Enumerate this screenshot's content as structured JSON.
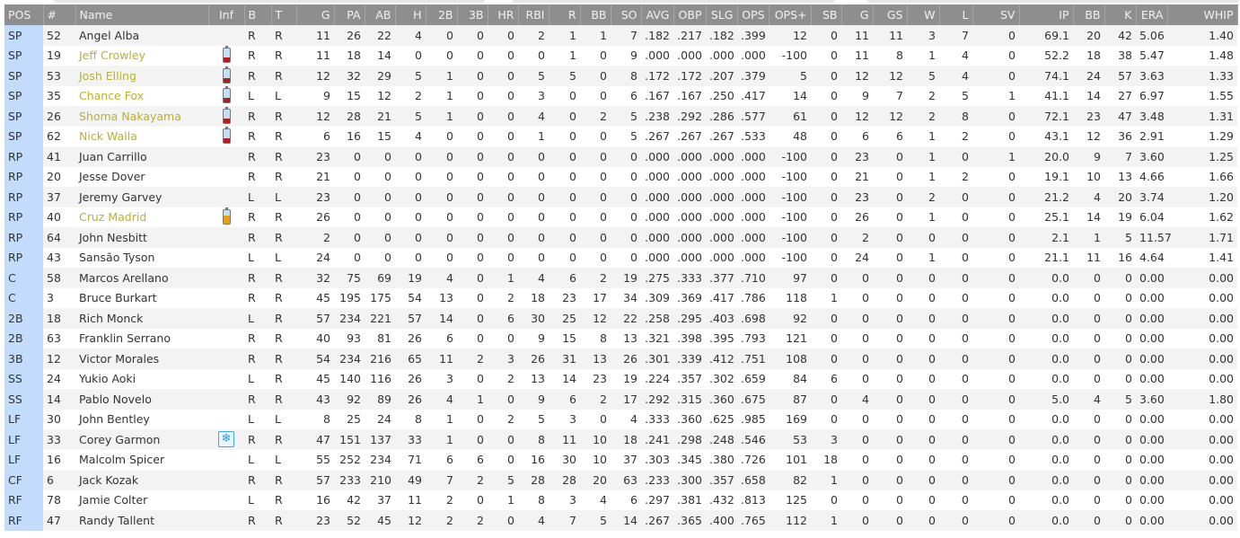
{
  "colors": {
    "header_bg": "#8e8e8e",
    "pos_bg": "#c3dcfb",
    "injured_name": "#b9b22b",
    "battery_low": "#c01818",
    "battery_mid": "#f2a000",
    "battery_top": "#bfe0f7",
    "snowflake": "#2b9be0"
  },
  "columns": [
    "POS",
    "#",
    "Name",
    "Inf",
    "B",
    "T",
    "G",
    "PA",
    "AB",
    "H",
    "2B",
    "3B",
    "HR",
    "RBI",
    "R",
    "BB",
    "SO",
    "AVG",
    "OBP",
    "SLG",
    "OPS",
    "OPS+",
    "SB",
    "G",
    "GS",
    "W",
    "L",
    "SV",
    "IP",
    "BB",
    "K",
    "ERA",
    "WHIP"
  ],
  "rows": [
    {
      "pos": "SP",
      "num": "52",
      "name": "Angel Alba",
      "inf": "",
      "hl": false,
      "stats": [
        "R",
        "R",
        "11",
        "26",
        "22",
        "4",
        "0",
        "0",
        "0",
        "2",
        "1",
        "1",
        "7",
        ".182",
        ".217",
        ".182",
        ".399",
        "12",
        "0",
        "11",
        "11",
        "3",
        "7",
        "0",
        "69.1",
        "20",
        "42",
        "5.06",
        "1.40"
      ]
    },
    {
      "pos": "SP",
      "num": "19",
      "name": "Jeff Crowley",
      "inf": "battery-low-icon",
      "hl": true,
      "stats": [
        "R",
        "R",
        "11",
        "18",
        "14",
        "0",
        "0",
        "0",
        "0",
        "0",
        "1",
        "0",
        "9",
        ".000",
        ".000",
        ".000",
        ".000",
        "-100",
        "0",
        "11",
        "8",
        "1",
        "4",
        "0",
        "52.2",
        "18",
        "38",
        "5.47",
        "1.48"
      ]
    },
    {
      "pos": "SP",
      "num": "53",
      "name": "Josh Elling",
      "inf": "battery-low-icon",
      "hl": true,
      "stats": [
        "R",
        "R",
        "12",
        "32",
        "29",
        "5",
        "1",
        "0",
        "0",
        "5",
        "5",
        "0",
        "8",
        ".172",
        ".172",
        ".207",
        ".379",
        "5",
        "0",
        "12",
        "12",
        "5",
        "4",
        "0",
        "74.1",
        "24",
        "57",
        "3.63",
        "1.33"
      ]
    },
    {
      "pos": "SP",
      "num": "35",
      "name": "Chance Fox",
      "inf": "battery-low-icon",
      "hl": true,
      "stats": [
        "L",
        "L",
        "9",
        "15",
        "12",
        "2",
        "1",
        "0",
        "0",
        "3",
        "0",
        "0",
        "6",
        ".167",
        ".167",
        ".250",
        ".417",
        "14",
        "0",
        "9",
        "7",
        "2",
        "5",
        "1",
        "41.1",
        "14",
        "27",
        "6.97",
        "1.55"
      ]
    },
    {
      "pos": "SP",
      "num": "26",
      "name": "Shoma Nakayama",
      "inf": "battery-low-icon",
      "hl": true,
      "stats": [
        "R",
        "R",
        "12",
        "28",
        "21",
        "5",
        "1",
        "0",
        "0",
        "4",
        "0",
        "2",
        "5",
        ".238",
        ".292",
        ".286",
        ".577",
        "61",
        "0",
        "12",
        "12",
        "2",
        "8",
        "0",
        "72.1",
        "23",
        "47",
        "3.48",
        "1.31"
      ]
    },
    {
      "pos": "SP",
      "num": "62",
      "name": "Nick Walla",
      "inf": "battery-low-icon",
      "hl": true,
      "stats": [
        "R",
        "R",
        "6",
        "16",
        "15",
        "4",
        "0",
        "0",
        "0",
        "1",
        "0",
        "0",
        "5",
        ".267",
        ".267",
        ".267",
        ".533",
        "48",
        "0",
        "6",
        "6",
        "1",
        "2",
        "0",
        "43.1",
        "12",
        "36",
        "2.91",
        "1.29"
      ]
    },
    {
      "pos": "RP",
      "num": "41",
      "name": "Juan Carrillo",
      "inf": "",
      "hl": false,
      "stats": [
        "R",
        "R",
        "23",
        "0",
        "0",
        "0",
        "0",
        "0",
        "0",
        "0",
        "0",
        "0",
        "0",
        ".000",
        ".000",
        ".000",
        ".000",
        "-100",
        "0",
        "23",
        "0",
        "1",
        "0",
        "1",
        "20.0",
        "9",
        "7",
        "3.60",
        "1.25"
      ]
    },
    {
      "pos": "RP",
      "num": "20",
      "name": "Jesse Dover",
      "inf": "",
      "hl": false,
      "stats": [
        "R",
        "R",
        "21",
        "0",
        "0",
        "0",
        "0",
        "0",
        "0",
        "0",
        "0",
        "0",
        "0",
        ".000",
        ".000",
        ".000",
        ".000",
        "-100",
        "0",
        "21",
        "0",
        "1",
        "2",
        "0",
        "19.1",
        "10",
        "13",
        "4.66",
        "1.66"
      ]
    },
    {
      "pos": "RP",
      "num": "37",
      "name": "Jeremy Garvey",
      "inf": "",
      "hl": false,
      "stats": [
        "L",
        "L",
        "23",
        "0",
        "0",
        "0",
        "0",
        "0",
        "0",
        "0",
        "0",
        "0",
        "0",
        ".000",
        ".000",
        ".000",
        ".000",
        "-100",
        "0",
        "23",
        "0",
        "2",
        "0",
        "0",
        "21.2",
        "4",
        "20",
        "3.74",
        "1.20"
      ]
    },
    {
      "pos": "RP",
      "num": "40",
      "name": "Cruz Madrid",
      "inf": "battery-mid-icon",
      "hl": true,
      "stats": [
        "R",
        "R",
        "26",
        "0",
        "0",
        "0",
        "0",
        "0",
        "0",
        "0",
        "0",
        "0",
        "0",
        ".000",
        ".000",
        ".000",
        ".000",
        "-100",
        "0",
        "26",
        "0",
        "1",
        "0",
        "0",
        "25.1",
        "14",
        "19",
        "6.04",
        "1.62"
      ]
    },
    {
      "pos": "RP",
      "num": "64",
      "name": "John Nesbitt",
      "inf": "",
      "hl": false,
      "stats": [
        "R",
        "R",
        "2",
        "0",
        "0",
        "0",
        "0",
        "0",
        "0",
        "0",
        "0",
        "0",
        "0",
        ".000",
        ".000",
        ".000",
        ".000",
        "-100",
        "0",
        "2",
        "0",
        "0",
        "0",
        "0",
        "2.1",
        "1",
        "5",
        "11.57",
        "1.71"
      ]
    },
    {
      "pos": "RP",
      "num": "43",
      "name": "Sansão Tyson",
      "inf": "",
      "hl": false,
      "stats": [
        "L",
        "L",
        "24",
        "0",
        "0",
        "0",
        "0",
        "0",
        "0",
        "0",
        "0",
        "0",
        "0",
        ".000",
        ".000",
        ".000",
        ".000",
        "-100",
        "0",
        "24",
        "0",
        "1",
        "0",
        "0",
        "21.1",
        "11",
        "16",
        "4.64",
        "1.41"
      ]
    },
    {
      "pos": "C",
      "num": "58",
      "name": "Marcos Arellano",
      "inf": "",
      "hl": false,
      "stats": [
        "R",
        "R",
        "32",
        "75",
        "69",
        "19",
        "4",
        "0",
        "1",
        "4",
        "6",
        "2",
        "19",
        ".275",
        ".333",
        ".377",
        ".710",
        "97",
        "0",
        "0",
        "0",
        "0",
        "0",
        "0",
        "0.0",
        "0",
        "0",
        "0.00",
        "0.00"
      ]
    },
    {
      "pos": "C",
      "num": "3",
      "name": "Bruce Burkart",
      "inf": "",
      "hl": false,
      "stats": [
        "R",
        "R",
        "45",
        "195",
        "175",
        "54",
        "13",
        "0",
        "2",
        "18",
        "23",
        "17",
        "34",
        ".309",
        ".369",
        ".417",
        ".786",
        "118",
        "1",
        "0",
        "0",
        "0",
        "0",
        "0",
        "0.0",
        "0",
        "0",
        "0.00",
        "0.00"
      ]
    },
    {
      "pos": "2B",
      "num": "18",
      "name": "Rich Monck",
      "inf": "",
      "hl": false,
      "stats": [
        "L",
        "R",
        "57",
        "234",
        "221",
        "57",
        "14",
        "0",
        "6",
        "30",
        "25",
        "12",
        "22",
        ".258",
        ".295",
        ".403",
        ".698",
        "92",
        "0",
        "0",
        "0",
        "0",
        "0",
        "0",
        "0.0",
        "0",
        "0",
        "0.00",
        "0.00"
      ]
    },
    {
      "pos": "2B",
      "num": "63",
      "name": "Franklin Serrano",
      "inf": "",
      "hl": false,
      "stats": [
        "R",
        "R",
        "40",
        "93",
        "81",
        "26",
        "6",
        "0",
        "0",
        "9",
        "15",
        "8",
        "13",
        ".321",
        ".398",
        ".395",
        ".793",
        "121",
        "0",
        "0",
        "0",
        "0",
        "0",
        "0",
        "0.0",
        "0",
        "0",
        "0.00",
        "0.00"
      ]
    },
    {
      "pos": "3B",
      "num": "12",
      "name": "Victor Morales",
      "inf": "",
      "hl": false,
      "stats": [
        "R",
        "R",
        "54",
        "234",
        "216",
        "65",
        "11",
        "2",
        "3",
        "26",
        "31",
        "13",
        "26",
        ".301",
        ".339",
        ".412",
        ".751",
        "108",
        "0",
        "0",
        "0",
        "0",
        "0",
        "0",
        "0.0",
        "0",
        "0",
        "0.00",
        "0.00"
      ]
    },
    {
      "pos": "SS",
      "num": "24",
      "name": "Yukio Aoki",
      "inf": "",
      "hl": false,
      "stats": [
        "L",
        "R",
        "45",
        "140",
        "116",
        "26",
        "3",
        "0",
        "2",
        "13",
        "14",
        "23",
        "19",
        ".224",
        ".357",
        ".302",
        ".659",
        "84",
        "6",
        "0",
        "0",
        "0",
        "0",
        "0",
        "0.0",
        "0",
        "0",
        "0.00",
        "0.00"
      ]
    },
    {
      "pos": "SS",
      "num": "14",
      "name": "Pablo Novelo",
      "inf": "",
      "hl": false,
      "stats": [
        "R",
        "R",
        "43",
        "92",
        "89",
        "26",
        "4",
        "1",
        "0",
        "9",
        "6",
        "2",
        "17",
        ".292",
        ".315",
        ".360",
        ".675",
        "87",
        "0",
        "4",
        "0",
        "0",
        "0",
        "0",
        "5.0",
        "4",
        "5",
        "3.60",
        "1.80"
      ]
    },
    {
      "pos": "LF",
      "num": "30",
      "name": "John Bentley",
      "inf": "",
      "hl": false,
      "stats": [
        "L",
        "L",
        "8",
        "25",
        "24",
        "8",
        "1",
        "0",
        "2",
        "5",
        "3",
        "0",
        "4",
        ".333",
        ".360",
        ".625",
        ".985",
        "169",
        "0",
        "0",
        "0",
        "0",
        "0",
        "0",
        "0.0",
        "0",
        "0",
        "0.00",
        "0.00"
      ]
    },
    {
      "pos": "LF",
      "num": "33",
      "name": "Corey Garmon",
      "inf": "snowflake-icon",
      "hl": false,
      "stats": [
        "R",
        "R",
        "47",
        "151",
        "137",
        "33",
        "1",
        "0",
        "0",
        "8",
        "11",
        "10",
        "18",
        ".241",
        ".298",
        ".248",
        ".546",
        "53",
        "3",
        "0",
        "0",
        "0",
        "0",
        "0",
        "0.0",
        "0",
        "0",
        "0.00",
        "0.00"
      ]
    },
    {
      "pos": "LF",
      "num": "16",
      "name": "Malcolm Spicer",
      "inf": "",
      "hl": false,
      "stats": [
        "L",
        "L",
        "55",
        "252",
        "234",
        "71",
        "6",
        "6",
        "0",
        "16",
        "30",
        "10",
        "37",
        ".303",
        ".345",
        ".380",
        ".726",
        "101",
        "18",
        "0",
        "0",
        "0",
        "0",
        "0",
        "0.0",
        "0",
        "0",
        "0.00",
        "0.00"
      ]
    },
    {
      "pos": "CF",
      "num": "6",
      "name": "Jack Kozak",
      "inf": "",
      "hl": false,
      "stats": [
        "R",
        "R",
        "57",
        "233",
        "210",
        "49",
        "7",
        "2",
        "5",
        "28",
        "28",
        "20",
        "63",
        ".233",
        ".300",
        ".357",
        ".658",
        "82",
        "1",
        "0",
        "0",
        "0",
        "0",
        "0",
        "0.0",
        "0",
        "0",
        "0.00",
        "0.00"
      ]
    },
    {
      "pos": "RF",
      "num": "78",
      "name": "Jamie Colter",
      "inf": "",
      "hl": false,
      "stats": [
        "L",
        "R",
        "16",
        "42",
        "37",
        "11",
        "2",
        "0",
        "1",
        "8",
        "3",
        "4",
        "6",
        ".297",
        ".381",
        ".432",
        ".813",
        "125",
        "0",
        "0",
        "0",
        "0",
        "0",
        "0",
        "0.0",
        "0",
        "0",
        "0.00",
        "0.00"
      ]
    },
    {
      "pos": "RF",
      "num": "47",
      "name": "Randy Tallent",
      "inf": "",
      "hl": false,
      "stats": [
        "R",
        "R",
        "23",
        "52",
        "45",
        "12",
        "2",
        "2",
        "0",
        "4",
        "7",
        "5",
        "14",
        ".267",
        ".365",
        ".400",
        ".765",
        "112",
        "1",
        "0",
        "0",
        "0",
        "0",
        "0",
        "0.0",
        "0",
        "0",
        "0.00",
        "0.00"
      ]
    }
  ]
}
